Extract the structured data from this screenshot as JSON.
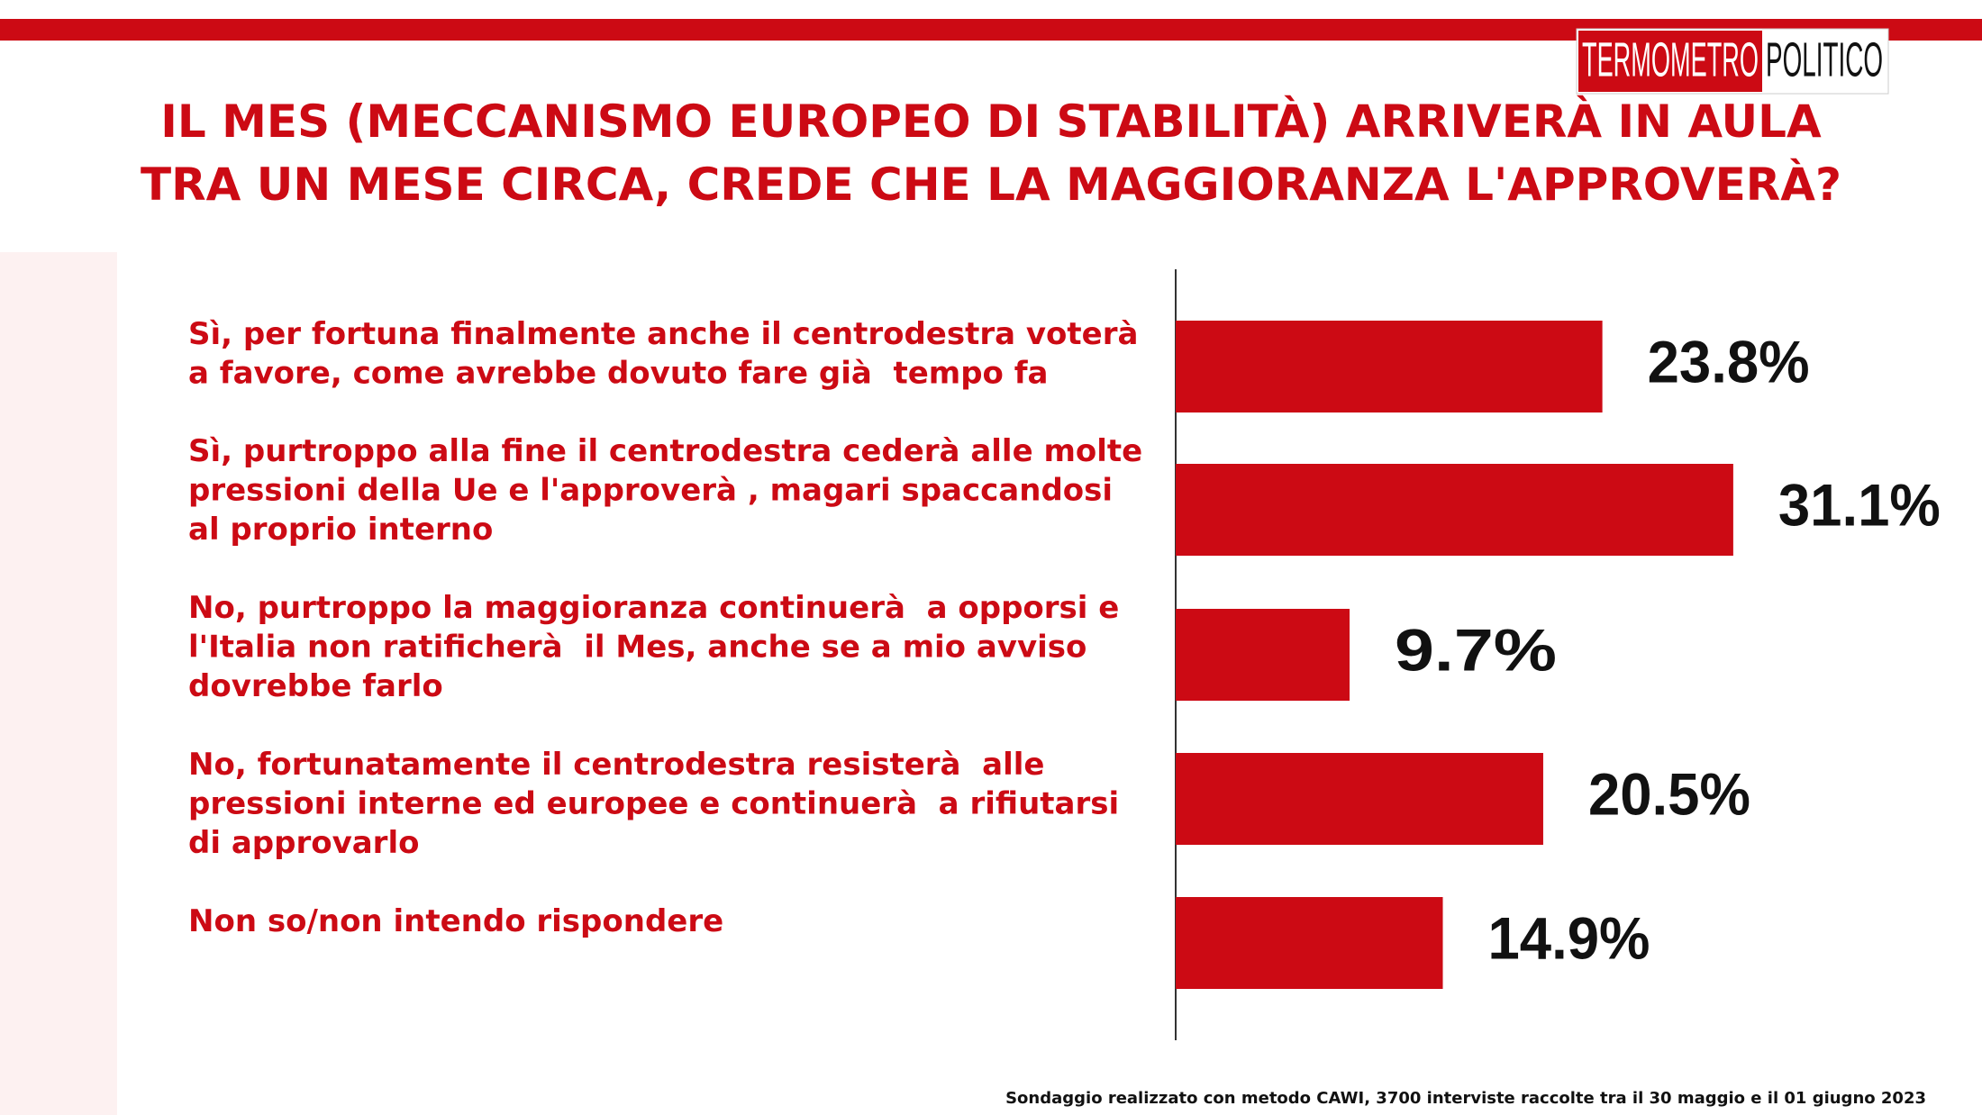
{
  "chart_data": {
    "type": "bar",
    "orientation": "horizontal",
    "title": "IL MES (MECCANISMO EUROPEO DI STABILITÀ) ARRIVERÀ IN AULA\nTRA UN MESE CIRCA, CREDE CHE LA MAGGIORANZA L'APPROVERÀ?",
    "categories": [
      "Sì, per fortuna finalmente anche il centrodestra voterà\na favore, come avrebbe dovuto fare già  tempo fa",
      "Sì, purtroppo alla fine il centrodestra cederà alle molte\npressioni della Ue e l'approverà , magari spaccandosi\nal proprio interno",
      "No, purtroppo la maggioranza continuerà  a opporsi e\nl'Italia non ratificherà  il Mes, anche se a mio avviso\ndovrebbe farlo",
      "No, fortunatamente il centrodestra resisterà  alle\npressioni interne ed europee e continuerà  a rifiutarsi\ndi approvarlo",
      "Non so/non intendo rispondere"
    ],
    "values": [
      23.8,
      31.1,
      9.7,
      20.5,
      14.9
    ],
    "value_labels": [
      "23.8%",
      "31.1%",
      "9.7%",
      "20.5%",
      "14.9%"
    ],
    "color": "#cc0a14",
    "logo": {
      "left": "TERMOMETRO",
      "right": "POLITICO"
    },
    "footnote": "Sondaggio realizzato con metodo CAWI, 3700 interviste raccolte tra il 30 maggio e il 01 giugno 2023"
  }
}
